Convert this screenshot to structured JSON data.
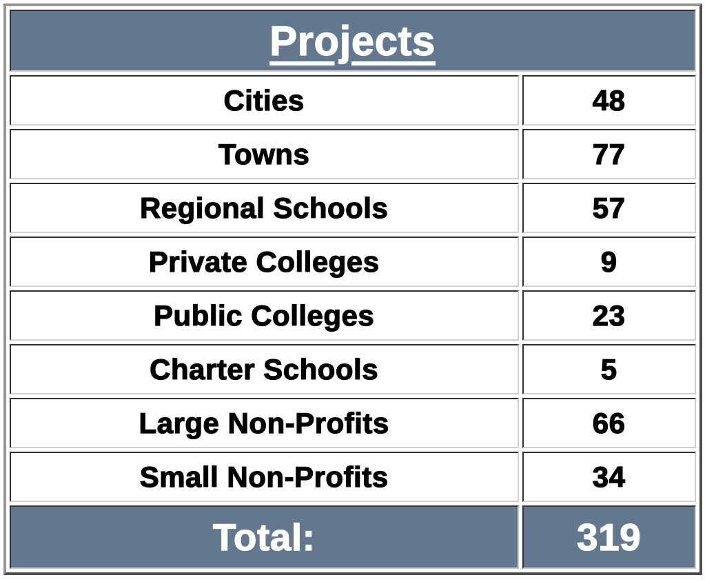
{
  "table": {
    "title": "Projects",
    "rows": [
      {
        "label": "Cities",
        "value": "48"
      },
      {
        "label": "Towns",
        "value": "77"
      },
      {
        "label": "Regional Schools",
        "value": "57"
      },
      {
        "label": "Private Colleges",
        "value": "9"
      },
      {
        "label": "Public Colleges",
        "value": "23"
      },
      {
        "label": "Charter Schools",
        "value": "5"
      },
      {
        "label": "Large Non-Profits",
        "value": "66"
      },
      {
        "label": "Small Non-Profits",
        "value": "34"
      }
    ],
    "total": {
      "label": "Total:",
      "value": "319"
    }
  },
  "colors": {
    "band_background": "#63788E",
    "band_text": "#FFFFFF",
    "row_background": "#FFFFFF",
    "row_text": "#000000"
  },
  "chart_data": {
    "type": "table",
    "title": "Projects",
    "categories": [
      "Cities",
      "Towns",
      "Regional Schools",
      "Private Colleges",
      "Public Colleges",
      "Charter Schools",
      "Large Non-Profits",
      "Small Non-Profits"
    ],
    "values": [
      48,
      77,
      57,
      9,
      23,
      5,
      66,
      34
    ],
    "total_label": "Total:",
    "total": 319
  }
}
